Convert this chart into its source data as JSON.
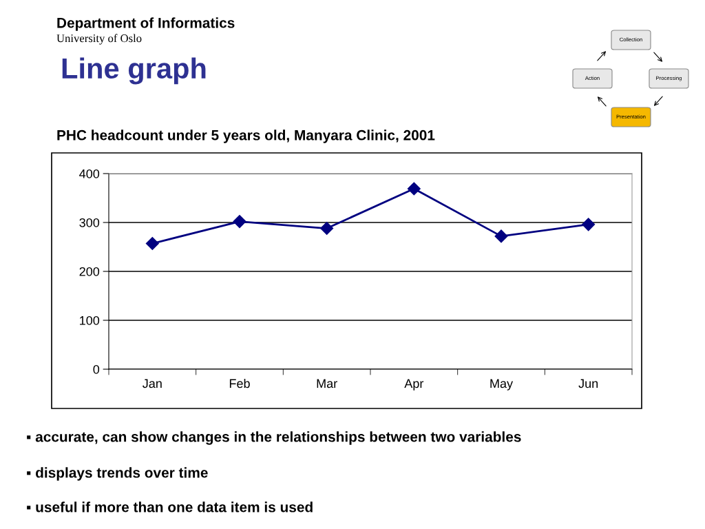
{
  "chart_data": {
    "type": "line",
    "title": "PHC headcount under 5 years old, Manyara Clinic, 2001",
    "categories": [
      "Jan",
      "Feb",
      "Mar",
      "Apr",
      "May",
      "Jun"
    ],
    "series": [
      {
        "color": "#000080",
        "values": [
          257,
          302,
          288,
          369,
          272,
          296
        ]
      }
    ],
    "ylim": [
      0,
      400
    ],
    "yticks": [
      0,
      100,
      200,
      300,
      400
    ],
    "grid": "y",
    "legend": false,
    "marker": "diamond",
    "line_style": "solid",
    "annotations": [
      "Department of Informatics",
      "University of Oslo",
      "Line graph",
      "▪ accurate, can show changes in the relationships between two variables",
      "▪ displays trends over time",
      "▪ useful if more than one data item is used",
      "Collection",
      "Processing",
      "Presentation",
      "Action"
    ]
  }
}
